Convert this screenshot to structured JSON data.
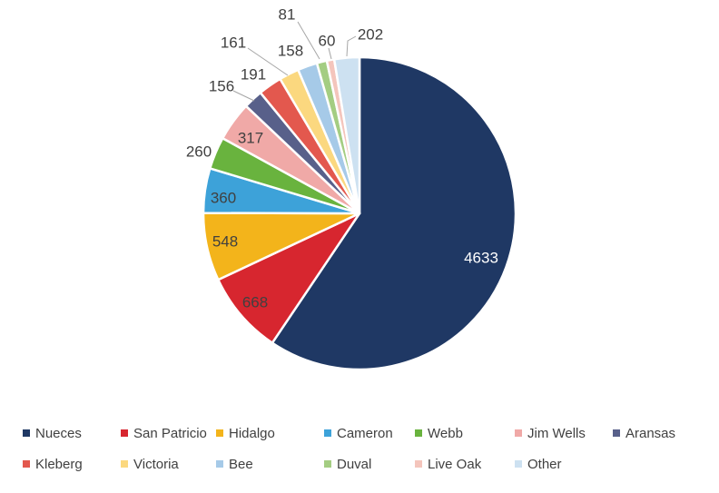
{
  "chart_data": {
    "type": "pie",
    "title": "",
    "legend_position": "bottom",
    "start_angle_deg": 0,
    "direction": "clockwise",
    "grid": false,
    "categories": [
      "Nueces",
      "San Patricio",
      "Hidalgo",
      "Cameron",
      "Webb",
      "Jim Wells",
      "Aransas",
      "Kleberg",
      "Victoria",
      "Bee",
      "Duval",
      "Live Oak",
      "Other"
    ],
    "values": [
      4633,
      668,
      548,
      360,
      260,
      317,
      156,
      191,
      161,
      158,
      81,
      60,
      202
    ],
    "colors": [
      "#1F3864",
      "#D7262F",
      "#F3B41B",
      "#3DA2D9",
      "#69B33E",
      "#F0A9A7",
      "#58608A",
      "#E3584E",
      "#FBD87F",
      "#A6CAE8",
      "#A4CD82",
      "#F4C5BC",
      "#CDE1F1"
    ],
    "label_placement": [
      "inside",
      "inside",
      "inside",
      "inside",
      "outside",
      "inside",
      "outside",
      "outside",
      "outside",
      "outside",
      "outside",
      "outside",
      "outside"
    ],
    "data_label_color": "#404040",
    "inside_label_color_on_dark": "#FFFFFF",
    "leader_line_color": "#A6A6A6"
  }
}
